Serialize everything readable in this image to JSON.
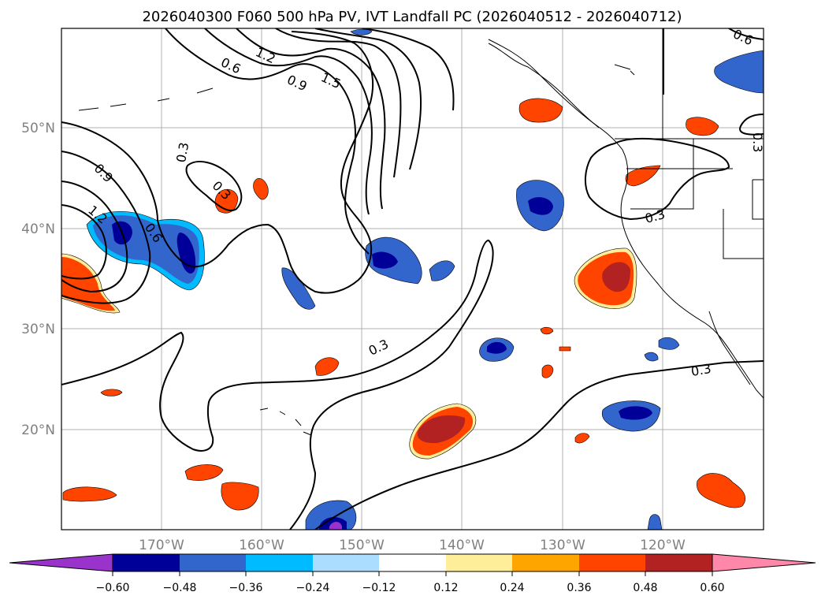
{
  "title": "2026040300 F060 500 hPa PV, IVT Landfall PC (2026040512 - 2026040712)",
  "lat_ticks": [
    "50°N",
    "40°N",
    "30°N",
    "20°N"
  ],
  "lon_ticks": [
    "170°W",
    "160°W",
    "150°W",
    "140°W",
    "130°W",
    "120°W"
  ],
  "colorbar": {
    "ticks": [
      "−0.60",
      "−0.48",
      "−0.36",
      "−0.24",
      "−0.12",
      "0.12",
      "0.24",
      "0.36",
      "0.48",
      "0.60"
    ],
    "colors": [
      "#9933cc",
      "#000099",
      "#3366cc",
      "#00bbff",
      "#aaddff",
      "#ffffff",
      "#ffee99",
      "#ffa500",
      "#ff4400",
      "#b22222",
      "#ff88aa"
    ]
  },
  "contour_labels": [
    "0.6",
    "1.2",
    "0.9",
    "1.5",
    "0.3",
    "0.3",
    "0.9",
    "1.2",
    "0.6",
    "0.3",
    "0.3",
    "0.3",
    "0.6",
    "0.3"
  ],
  "colors": {
    "neg_strong": "#000099",
    "neg_mid": "#3366cc",
    "neg_light": "#00bbff",
    "pos_light": "#ffee99",
    "pos_mid": "#ff4400",
    "pos_strong": "#b22222",
    "purple": "#9933cc"
  }
}
